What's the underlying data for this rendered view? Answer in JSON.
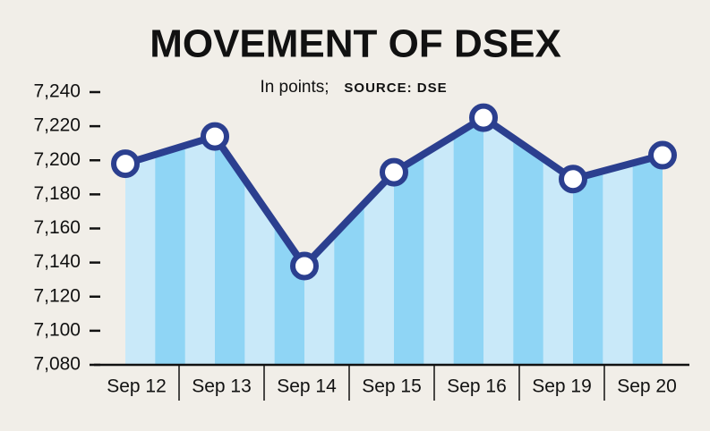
{
  "chart_data": {
    "type": "line",
    "title": "MOVEMENT OF DSEX",
    "subtitle": "In points;",
    "source": "SOURCE: DSE",
    "categories": [
      "Sep 12",
      "Sep 13",
      "Sep 14",
      "Sep 15",
      "Sep 16",
      "Sep 19",
      "Sep 20"
    ],
    "values": [
      7198,
      7214,
      7138,
      7193,
      7225,
      7189,
      7203
    ],
    "color": "#2b3f8f",
    "area_colors": [
      "#c9e9f9",
      "#8fd5f5"
    ],
    "ylim": [
      7080,
      7240
    ],
    "yticks": [
      {
        "value": 7080,
        "label": "7,080"
      },
      {
        "value": 7100,
        "label": "7,100"
      },
      {
        "value": 7120,
        "label": "7,120"
      },
      {
        "value": 7140,
        "label": "7,140"
      },
      {
        "value": 7160,
        "label": "7,160"
      },
      {
        "value": 7180,
        "label": "7,180"
      },
      {
        "value": 7200,
        "label": "7,200"
      },
      {
        "value": 7220,
        "label": "7,220"
      },
      {
        "value": 7240,
        "label": "7,240"
      }
    ]
  }
}
